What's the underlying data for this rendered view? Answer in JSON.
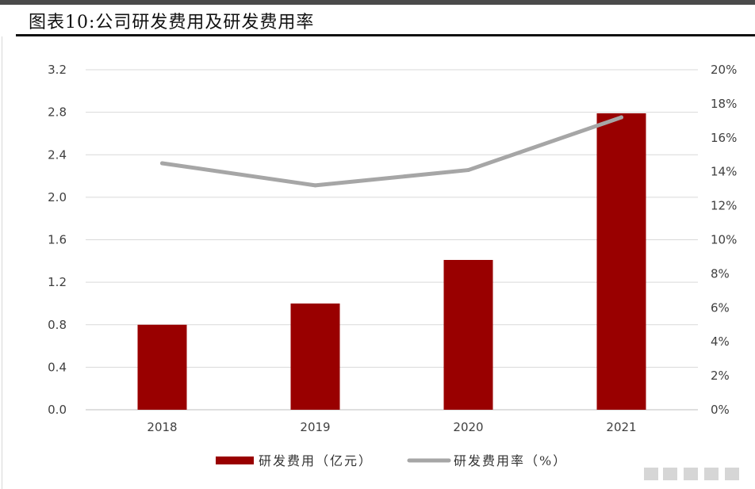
{
  "title": "图表10:公司研发费用及研发费用率",
  "chart_data": {
    "type": "bar+line",
    "categories": [
      "2018",
      "2019",
      "2020",
      "2021"
    ],
    "series": [
      {
        "name": "研发费用（亿元）",
        "type": "bar",
        "axis": "left",
        "values": [
          0.8,
          1.0,
          1.41,
          2.79
        ],
        "color": "#990000"
      },
      {
        "name": "研发费用率（%）",
        "type": "line",
        "axis": "right",
        "values": [
          14.5,
          13.2,
          14.1,
          17.2
        ],
        "color": "#a6a6a6"
      }
    ],
    "y_left": {
      "min": 0,
      "max": 3.2,
      "ticks": [
        "0.0",
        "0.4",
        "0.8",
        "1.2",
        "1.6",
        "2.0",
        "2.4",
        "2.8",
        "3.2"
      ]
    },
    "y_right": {
      "min": 0,
      "max": 20,
      "ticks": [
        "0%",
        "2%",
        "4%",
        "6%",
        "8%",
        "10%",
        "12%",
        "14%",
        "16%",
        "18%",
        "20%"
      ]
    },
    "grid": true,
    "legend": "bottom"
  }
}
